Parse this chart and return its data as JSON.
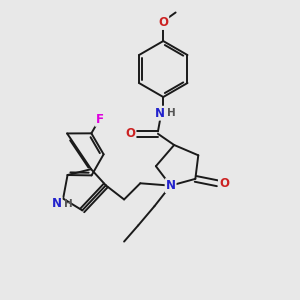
{
  "bg_color": "#e8e8e8",
  "bond_color": "#1a1a1a",
  "bond_width": 1.4,
  "atom_colors": {
    "N": "#2222cc",
    "O": "#cc2222",
    "F": "#dd00dd",
    "H": "#555555"
  },
  "font_size_atom": 8.5,
  "font_size_h": 7.5,
  "fig_bg": "#e8e8e8"
}
